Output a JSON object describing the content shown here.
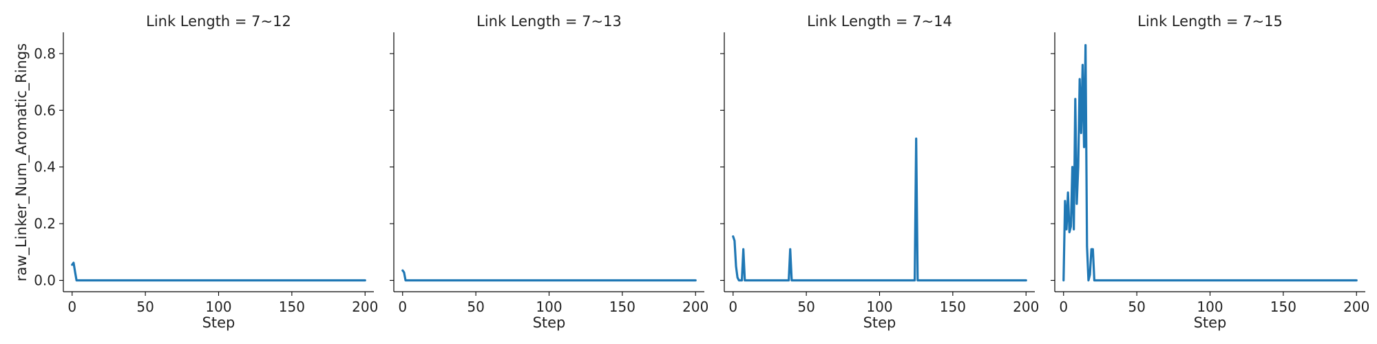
{
  "chart_data": {
    "type": "line",
    "ylabel": "raw_Linker_Num_Aromatic_Rings",
    "xlabel": "Step",
    "xlim": [
      -6,
      206
    ],
    "ylim": [
      -0.04,
      0.875
    ],
    "xticks": [
      0,
      50,
      100,
      150,
      200
    ],
    "yticks": [
      0.0,
      0.2,
      0.4,
      0.6,
      0.8
    ],
    "ytick_labels": [
      "0.0",
      "0.2",
      "0.4",
      "0.6",
      "0.8"
    ],
    "line_color": "#1f77b4",
    "grid": false,
    "panels": [
      {
        "title": "Link Length = 7~12",
        "x": [
          0,
          1,
          2,
          3,
          4,
          200
        ],
        "y": [
          0.055,
          0.062,
          0.03,
          0.0,
          0.0,
          0.0
        ]
      },
      {
        "title": "Link Length = 7~13",
        "x": [
          0,
          1,
          2,
          3,
          200
        ],
        "y": [
          0.035,
          0.028,
          0.0,
          0.0,
          0.0
        ]
      },
      {
        "title": "Link Length = 7~14",
        "x": [
          0,
          1,
          2,
          3,
          4,
          5,
          6,
          7,
          8,
          9,
          38,
          39,
          40,
          41,
          124,
          125,
          126,
          200
        ],
        "y": [
          0.155,
          0.14,
          0.05,
          0.01,
          0.0,
          0.0,
          0.0,
          0.11,
          0.0,
          0.0,
          0.0,
          0.11,
          0.0,
          0.0,
          0.0,
          0.5,
          0.0,
          0.0
        ]
      },
      {
        "title": "Link Length = 7~15",
        "x": [
          0,
          1,
          2,
          3,
          4,
          5,
          6,
          7,
          8,
          9,
          10,
          11,
          12,
          13,
          14,
          15,
          16,
          17,
          18,
          19,
          20,
          21,
          22,
          23,
          24,
          200
        ],
        "y": [
          0.0,
          0.28,
          0.18,
          0.31,
          0.17,
          0.19,
          0.4,
          0.18,
          0.64,
          0.27,
          0.4,
          0.71,
          0.52,
          0.76,
          0.47,
          0.83,
          0.12,
          0.0,
          0.02,
          0.11,
          0.11,
          0.0,
          0.0,
          0.0,
          0.0,
          0.0
        ]
      }
    ]
  }
}
